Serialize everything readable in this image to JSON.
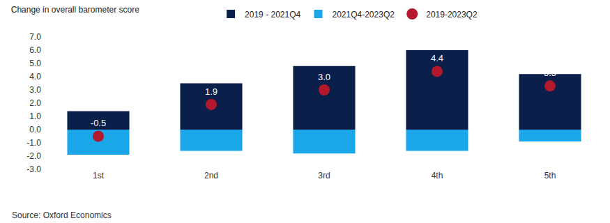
{
  "chart_data": {
    "type": "bar",
    "title": "Change in overall barometer score",
    "stacked": true,
    "legend": "top",
    "grid": false,
    "categories": [
      "1st",
      "2nd",
      "3rd",
      "4th",
      "5th"
    ],
    "series": [
      {
        "name": "2019 - 2021Q4",
        "type": "bar",
        "color": "#0b1f4b",
        "values": [
          1.4,
          3.5,
          4.8,
          6.0,
          4.2
        ]
      },
      {
        "name": "2021Q4-2023Q2",
        "type": "bar",
        "color": "#1ba6ea",
        "values": [
          -1.9,
          -1.6,
          -1.8,
          -1.6,
          -0.9
        ]
      },
      {
        "name": "2019-2023Q2",
        "type": "scatter",
        "marker": "circle",
        "color": "#b3182d",
        "data_labels": true,
        "values": [
          -0.5,
          1.9,
          3.0,
          4.4,
          3.3
        ],
        "value_labels": [
          "-0.5",
          "1.9",
          "3.0",
          "4.4",
          "3.3"
        ]
      }
    ],
    "ylim": [
      -3,
      7
    ],
    "yticks": [
      {
        "value": 7,
        "label": "7.0"
      },
      {
        "value": 6,
        "label": "6.0"
      },
      {
        "value": 5,
        "label": "5.0"
      },
      {
        "value": 4,
        "label": "4.0"
      },
      {
        "value": 3,
        "label": "3.0"
      },
      {
        "value": 2,
        "label": "2.0"
      },
      {
        "value": 1,
        "label": "1.0"
      },
      {
        "value": 0,
        "label": "0.0"
      },
      {
        "value": -1,
        "label": "-1.0"
      },
      {
        "value": -2,
        "label": "-2.0"
      },
      {
        "value": -3,
        "label": "-3.0"
      }
    ],
    "annotations": [
      "Source: Oxford Economics"
    ]
  }
}
